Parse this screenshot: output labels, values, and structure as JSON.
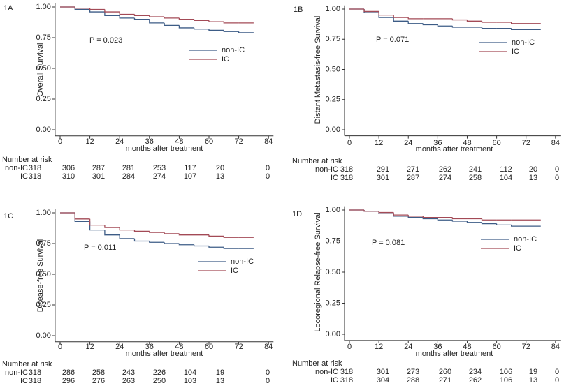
{
  "chart_data": [
    {
      "type": "step",
      "label": "1A",
      "ylabel": "Overall Survival",
      "xlabel": "months after treatment",
      "annotation": "P = 0.023",
      "risk_title": "Number at risk",
      "xlim": [
        -2,
        86
      ],
      "ylim": [
        -0.05,
        1.03
      ],
      "xticks": [
        0,
        12,
        24,
        36,
        48,
        60,
        72,
        84
      ],
      "yticks": [
        {
          "value": 0,
          "label": "0.00"
        },
        {
          "value": 0.25,
          "label": "0.25"
        },
        {
          "value": 0.5,
          "label": "0.50"
        },
        {
          "value": 0.75,
          "label": "0.75"
        },
        {
          "value": 1,
          "label": "1.00"
        }
      ],
      "x": [
        0,
        6,
        12,
        18,
        24,
        30,
        36,
        42,
        48,
        54,
        60,
        66,
        72,
        78
      ],
      "series": [
        {
          "name": "non-IC",
          "color": "#3d5c86",
          "values": [
            1,
            0.98,
            0.96,
            0.93,
            0.91,
            0.9,
            0.87,
            0.85,
            0.83,
            0.82,
            0.81,
            0.8,
            0.79,
            0.79
          ],
          "at_risk": [
            318,
            306,
            287,
            281,
            253,
            117,
            20,
            0
          ]
        },
        {
          "name": "IC",
          "color": "#a34a56",
          "values": [
            1,
            0.99,
            0.98,
            0.96,
            0.94,
            0.93,
            0.92,
            0.91,
            0.9,
            0.89,
            0.88,
            0.87,
            0.87,
            0.87
          ],
          "at_risk": [
            318,
            310,
            301,
            284,
            274,
            107,
            13,
            0
          ]
        }
      ]
    },
    {
      "type": "step",
      "label": "1B",
      "ylabel": "Distant Metastasis-free Survival",
      "xlabel": "months after treatment",
      "annotation": "P = 0.071",
      "risk_title": "Number at risk",
      "xlim": [
        -2,
        86
      ],
      "ylim": [
        -0.05,
        1.03
      ],
      "xticks": [
        0,
        12,
        24,
        36,
        48,
        60,
        72,
        84
      ],
      "yticks": [
        {
          "value": 0,
          "label": "0.00"
        },
        {
          "value": 0.25,
          "label": "0.25"
        },
        {
          "value": 0.5,
          "label": "0.50"
        },
        {
          "value": 0.75,
          "label": "0.75"
        },
        {
          "value": 1,
          "label": "1.00"
        }
      ],
      "x": [
        0,
        6,
        12,
        18,
        24,
        30,
        36,
        42,
        48,
        54,
        60,
        66,
        72,
        78
      ],
      "series": [
        {
          "name": "non-IC",
          "color": "#3d5c86",
          "values": [
            1,
            0.97,
            0.93,
            0.9,
            0.88,
            0.87,
            0.86,
            0.85,
            0.85,
            0.84,
            0.84,
            0.83,
            0.83,
            0.83
          ],
          "at_risk": [
            318,
            291,
            271,
            262,
            241,
            112,
            20,
            0
          ]
        },
        {
          "name": "IC",
          "color": "#a34a56",
          "values": [
            1,
            0.98,
            0.95,
            0.93,
            0.92,
            0.92,
            0.92,
            0.91,
            0.9,
            0.89,
            0.89,
            0.88,
            0.88,
            0.88
          ],
          "at_risk": [
            318,
            301,
            287,
            274,
            258,
            104,
            13,
            0
          ]
        }
      ]
    },
    {
      "type": "step",
      "label": "1C",
      "ylabel": "Disease-free Survival",
      "xlabel": "months after treatment",
      "annotation": "P = 0.011",
      "risk_title": "Number at risk",
      "xlim": [
        -2,
        86
      ],
      "ylim": [
        -0.05,
        1.03
      ],
      "xticks": [
        0,
        12,
        24,
        36,
        48,
        60,
        72,
        84
      ],
      "yticks": [
        {
          "value": 0,
          "label": "0.00"
        },
        {
          "value": 0.25,
          "label": "0.25"
        },
        {
          "value": 0.5,
          "label": "0.50"
        },
        {
          "value": 0.75,
          "label": "0.75"
        },
        {
          "value": 1,
          "label": "1.00"
        }
      ],
      "x": [
        0,
        6,
        12,
        18,
        24,
        30,
        36,
        42,
        48,
        54,
        60,
        66,
        72,
        78
      ],
      "series": [
        {
          "name": "non-IC",
          "color": "#3d5c86",
          "values": [
            1,
            0.93,
            0.86,
            0.82,
            0.79,
            0.77,
            0.76,
            0.75,
            0.74,
            0.73,
            0.72,
            0.71,
            0.71,
            0.71
          ],
          "at_risk": [
            318,
            286,
            258,
            243,
            226,
            104,
            19,
            0
          ]
        },
        {
          "name": "IC",
          "color": "#a34a56",
          "values": [
            1,
            0.95,
            0.9,
            0.88,
            0.86,
            0.85,
            0.84,
            0.83,
            0.82,
            0.82,
            0.81,
            0.8,
            0.8,
            0.8
          ],
          "at_risk": [
            318,
            296,
            276,
            263,
            250,
            103,
            13,
            0
          ]
        }
      ]
    },
    {
      "type": "step",
      "label": "1D",
      "ylabel": "Locoregional Relapse-free Survival",
      "xlabel": "months after treatment",
      "annotation": "P = 0.081",
      "risk_title": "Number at risk",
      "xlim": [
        -2,
        86
      ],
      "ylim": [
        -0.05,
        1.03
      ],
      "xticks": [
        0,
        12,
        24,
        36,
        48,
        60,
        72,
        84
      ],
      "yticks": [
        {
          "value": 0,
          "label": "0.00"
        },
        {
          "value": 0.25,
          "label": "0.25"
        },
        {
          "value": 0.5,
          "label": "0.50"
        },
        {
          "value": 0.75,
          "label": "0.75"
        },
        {
          "value": 1,
          "label": "1.00"
        }
      ],
      "x": [
        0,
        6,
        12,
        18,
        24,
        30,
        36,
        42,
        48,
        54,
        60,
        66,
        72,
        78
      ],
      "series": [
        {
          "name": "non-IC",
          "color": "#3d5c86",
          "values": [
            1,
            0.99,
            0.97,
            0.95,
            0.94,
            0.93,
            0.92,
            0.91,
            0.9,
            0.89,
            0.88,
            0.87,
            0.87,
            0.87
          ],
          "at_risk": [
            318,
            301,
            273,
            260,
            234,
            106,
            19,
            0
          ]
        },
        {
          "name": "IC",
          "color": "#a34a56",
          "values": [
            1,
            0.99,
            0.98,
            0.96,
            0.95,
            0.94,
            0.94,
            0.93,
            0.93,
            0.92,
            0.92,
            0.92,
            0.92,
            0.92
          ],
          "at_risk": [
            318,
            304,
            288,
            271,
            262,
            106,
            13,
            0
          ]
        }
      ]
    }
  ]
}
